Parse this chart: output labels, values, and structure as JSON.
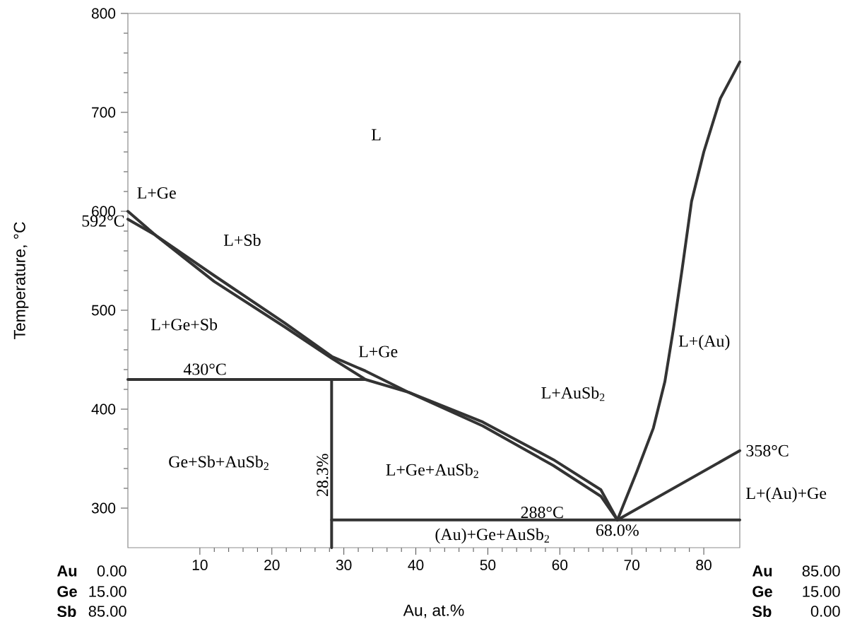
{
  "chart_data": {
    "type": "line",
    "xlabel": "Au, at.%",
    "ylabel": "Temperature, °C",
    "xlim": [
      0,
      85
    ],
    "ylim": [
      260,
      800
    ],
    "xticks": [
      10,
      20,
      30,
      40,
      50,
      60,
      70,
      80
    ],
    "yticks": [
      300,
      400,
      500,
      600,
      700,
      800
    ],
    "marker": "none",
    "line_style": "solid",
    "series": [
      {
        "color": "#333333",
        "x": [
          0,
          33,
          39,
          49.3,
          59.1,
          65.7,
          68,
          85
        ],
        "values": [
          430,
          430,
          417,
          387,
          349,
          318.6,
          288,
          358
        ]
      },
      {
        "color": "#333333",
        "x": [
          0,
          3.8,
          12,
          21.8,
          28.4,
          33
        ],
        "values": [
          600,
          576,
          529,
          483,
          451,
          430
        ]
      },
      {
        "color": "#333333",
        "x": [
          0,
          3.8,
          12,
          21.8,
          28.4,
          33,
          39,
          49.3,
          59.1,
          65.7,
          68,
          70.7,
          73,
          74.6,
          75.8,
          77,
          78.3,
          80,
          82.3,
          85
        ],
        "values": [
          592,
          576,
          535,
          487,
          453,
          438.6,
          417,
          383,
          343,
          312,
          288,
          337,
          381,
          428,
          482,
          542,
          610,
          660,
          714,
          751
        ]
      },
      {
        "color": "#333333",
        "x": [
          28.3,
          28.3
        ],
        "values": [
          260,
          430
        ]
      },
      {
        "color": "#333333",
        "x": [
          28.3,
          85
        ],
        "values": [
          288,
          288
        ]
      }
    ],
    "annotations": [
      "L",
      "L+Ge",
      {
        "text": "592°C",
        "x": 0,
        "y": 592
      },
      "L+Sb",
      "L+Ge+Sb",
      "430°C",
      "L+Ge",
      "L+AuSb$_{2}$",
      "L+(Au)",
      {
        "text": "358°C",
        "x": 85,
        "y": 358
      },
      "L+(Au)+Ge",
      "Ge+Sb+AuSb$_{2}$",
      "L+Ge+AuSb$_{2}$",
      "28.3%",
      "288°C",
      "(Au)+Ge+AuSb$_{2}$",
      {
        "text": "68.0%",
        "x": 68,
        "y": 288
      },
      "Au",
      "0.00",
      "Ge",
      "15.00",
      "Sb",
      "85.00",
      "Au",
      "85.00",
      "Ge",
      "15.00",
      "Sb",
      "0.00"
    ]
  }
}
